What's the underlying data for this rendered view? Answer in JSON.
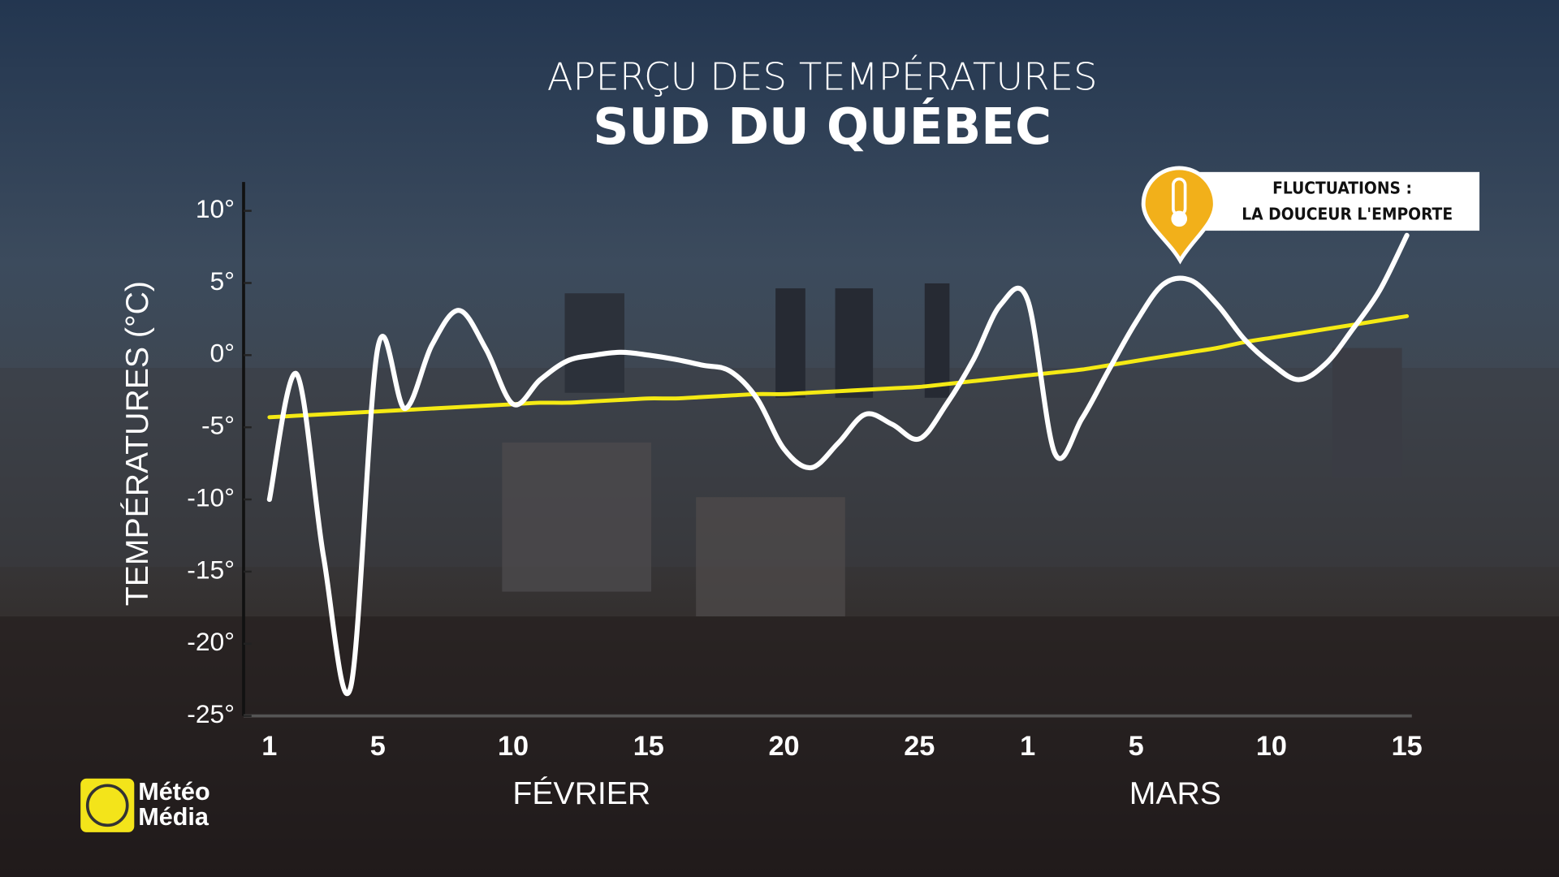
{
  "chart_data": {
    "type": "line",
    "title": "APERÇU DES TEMPÉRATURES",
    "subtitle": "SUD DU QUÉBEC",
    "y_label": "TEMPÉRATURES (°C)",
    "categories": [
      "1",
      null,
      null,
      null,
      "5",
      null,
      null,
      null,
      null,
      "10",
      null,
      null,
      null,
      null,
      "15",
      null,
      null,
      null,
      null,
      "20",
      null,
      null,
      null,
      null,
      "25",
      null,
      null,
      null,
      "1",
      null,
      null,
      null,
      "5",
      null,
      null,
      null,
      null,
      "10",
      null,
      null,
      null,
      null,
      "15"
    ],
    "month_labels": [
      "FÉVRIER",
      "MARS"
    ],
    "series": [
      {
        "color": "#ffffff",
        "values": [
          -10,
          -1.3,
          -14,
          -23,
          0.5,
          -3.7,
          0.7,
          3.1,
          0.4,
          -3.4,
          -1.7,
          -0.4,
          0,
          0.2,
          0,
          -0.3,
          -0.7,
          -1.1,
          -3,
          -6.5,
          -7.8,
          -6.1,
          -4.1,
          -4.8,
          -5.8,
          -3.4,
          -0.3,
          3.5,
          3.8,
          -6.8,
          -4.4,
          -1,
          2.3,
          4.9,
          5.2,
          3.5,
          1.1,
          -0.6,
          -1.7,
          -0.6,
          1.8,
          4.5,
          8.3
        ]
      },
      {
        "color": "#f5ea14",
        "values": [
          -4.3,
          -4.2,
          -4.1,
          -4.0,
          -3.9,
          -3.8,
          -3.7,
          -3.6,
          -3.5,
          -3.4,
          -3.3,
          -3.3,
          -3.2,
          -3.1,
          -3.0,
          -3.0,
          -2.9,
          -2.8,
          -2.7,
          -2.7,
          -2.6,
          -2.5,
          -2.4,
          -2.3,
          -2.2,
          -2.0,
          -1.8,
          -1.6,
          -1.4,
          -1.2,
          -1.0,
          -0.7,
          -0.4,
          -0.1,
          0.2,
          0.5,
          0.9,
          1.2,
          1.5,
          1.8,
          2.1,
          2.4,
          2.7
        ]
      }
    ],
    "ylim": [
      -25,
      12
    ],
    "yticks": [
      {
        "value": 10,
        "label": "10°"
      },
      {
        "value": 5,
        "label": "5°"
      },
      {
        "value": 0,
        "label": "0°"
      },
      {
        "value": -5,
        "label": "-5°"
      },
      {
        "value": -10,
        "label": "-10°"
      },
      {
        "value": -15,
        "label": "-15°"
      },
      {
        "value": -20,
        "label": "-20°"
      },
      {
        "value": -25,
        "label": "-25°"
      }
    ],
    "annotation": {
      "line1": "FLUCTUATIONS :",
      "line2": "LA DOUCEUR L'EMPORTE"
    }
  },
  "logo": {
    "line1": "Météo",
    "line2": "Média"
  }
}
